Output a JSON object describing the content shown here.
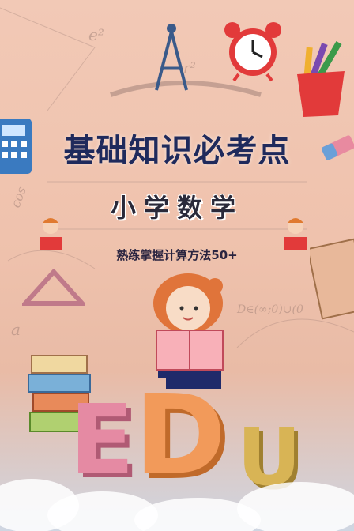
{
  "poster": {
    "title": "基础知识必考点",
    "subtitle": "小学数学",
    "tagline": "熟练掌握计算方法50+"
  },
  "scribbles": {
    "e2": "e²",
    "r2": "r²",
    "a": "a",
    "cos": "cos",
    "formula": "D∈(∞;0)∪(0",
    "letters": "EDU"
  },
  "colors": {
    "title": "#1f2a5c",
    "background": "#f2c9b6",
    "letter_e": "#e58aa3",
    "letter_d": "#f29a5a",
    "letter_u": "#d8b455"
  }
}
